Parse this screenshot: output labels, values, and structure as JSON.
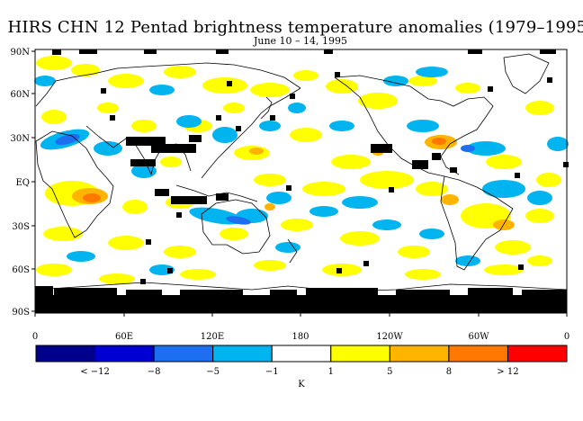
{
  "title": "HIRS CHN 12 Pentad brightness temperature anomalies (1979–1995)",
  "subtitle": "June 10 – 14, 1995",
  "lat_labels": [
    "90N",
    "60N",
    "30N",
    "EQ",
    "30S",
    "60S",
    "90S"
  ],
  "lon_labels": [
    "0",
    "60E",
    "120E",
    "180",
    "120W",
    "60W",
    "0"
  ],
  "colorbar": {
    "labels": [
      "< −12",
      "−8",
      "−5",
      "−1",
      "1",
      "5",
      "8",
      "> 12"
    ],
    "unit": "K",
    "colors": [
      "#00008b",
      "#0000d0",
      "#1e6ef0",
      "#00b4f0",
      "#ffffff",
      "#ffff00",
      "#ffb400",
      "#ff7800",
      "#ff0000"
    ]
  },
  "map_colors": {
    "neg_light": "#00b4f0",
    "neg_mid": "#1e6ef0",
    "pos_light": "#ffff00",
    "pos_mid": "#ffb400",
    "pos_strong": "#ff7800",
    "missing": "#000000"
  }
}
